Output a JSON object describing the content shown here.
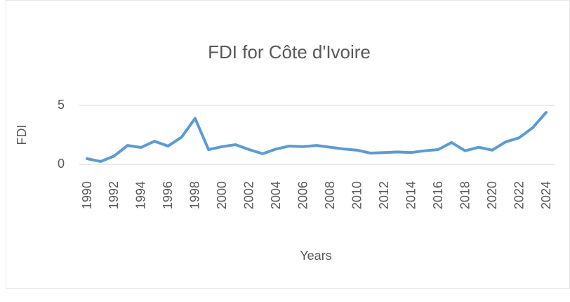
{
  "chart_data": {
    "type": "line",
    "title": "FDI for Côte d'Ivoire",
    "x_label": "Years",
    "y_label": "FDI",
    "categories": [
      "1990",
      null,
      "1992",
      null,
      "1994",
      null,
      "1996",
      null,
      "1998",
      null,
      "2000",
      null,
      "2002",
      null,
      "2004",
      null,
      "2006",
      null,
      "2008",
      null,
      "2010",
      null,
      "2012",
      null,
      "2014",
      null,
      "2016",
      null,
      "2018",
      null,
      "2020",
      null,
      "2022",
      null,
      "2024"
    ],
    "series": [
      {
        "name": "FDI",
        "color": "#5b9bd5",
        "values": [
          0.48,
          0.24,
          0.7,
          1.6,
          1.43,
          1.96,
          1.55,
          2.3,
          3.9,
          1.25,
          1.5,
          1.67,
          1.25,
          0.9,
          1.3,
          1.55,
          1.5,
          1.6,
          1.45,
          1.3,
          1.2,
          0.95,
          1.0,
          1.05,
          1.0,
          1.15,
          1.25,
          1.85,
          1.15,
          1.45,
          1.2,
          1.9,
          2.25,
          3.1,
          4.4
        ]
      }
    ],
    "ylim": [
      0,
      5
    ],
    "yticks": [
      0,
      5
    ],
    "grid": true
  }
}
